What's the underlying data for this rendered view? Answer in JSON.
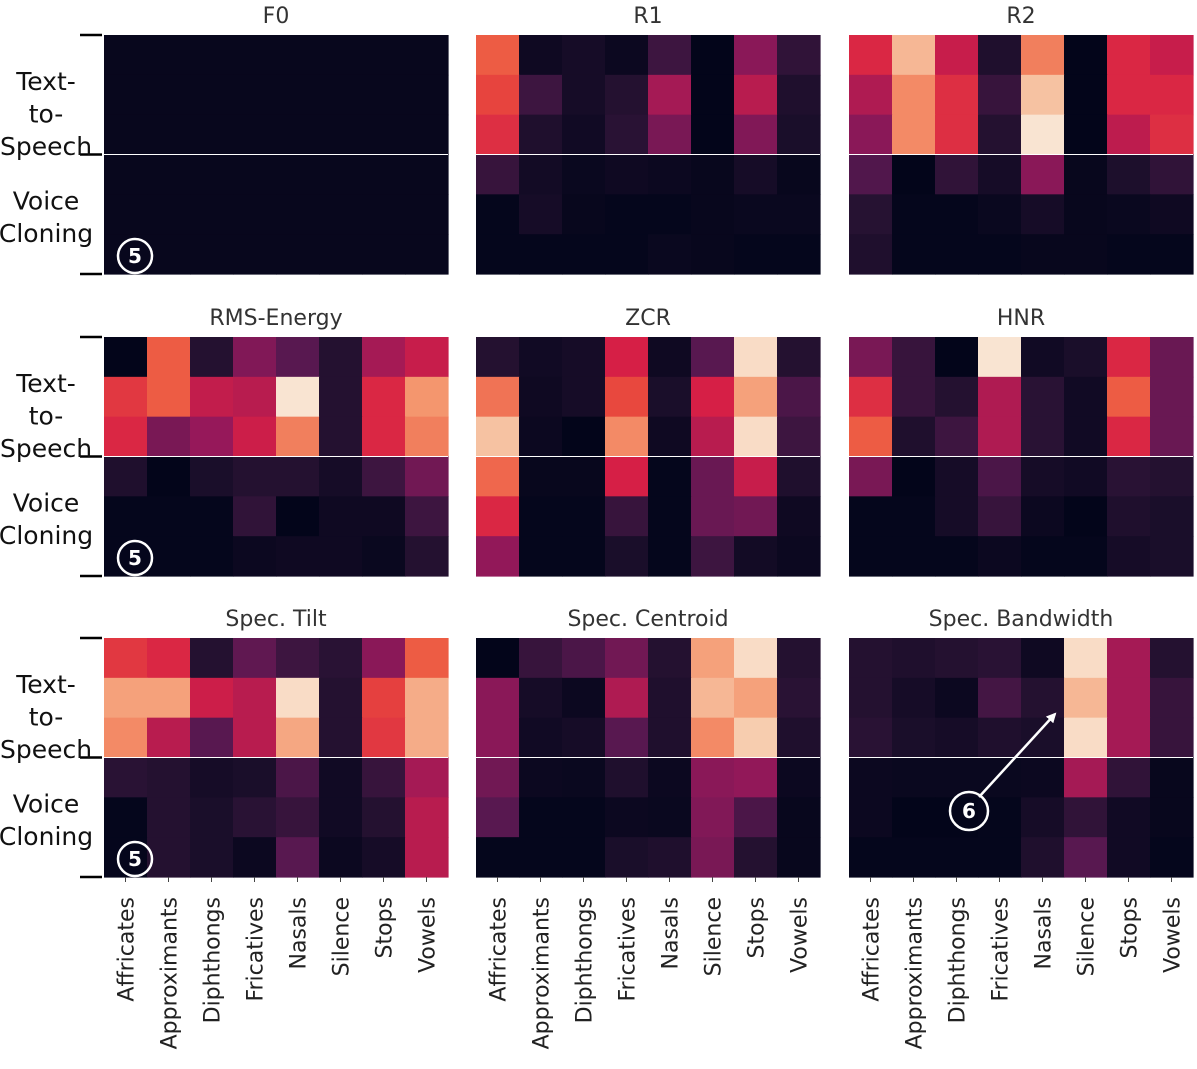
{
  "chart_data": {
    "type": "heatmap",
    "colormap": "rocket",
    "value_range": [
      0,
      1
    ],
    "x_categories": [
      "Affricates",
      "Approximants",
      "Diphthongs",
      "Fricatives",
      "Nasals",
      "Silence",
      "Stops",
      "Vowels"
    ],
    "row_groups": [
      "Text-to-Speech",
      "Voice Cloning"
    ],
    "rows_per_group": 3,
    "panels": [
      {
        "title": "F0",
        "values": [
          [
            0.02,
            0.02,
            0.02,
            0.02,
            0.02,
            0.02,
            0.02,
            0.02
          ],
          [
            0.02,
            0.02,
            0.02,
            0.02,
            0.02,
            0.02,
            0.02,
            0.02
          ],
          [
            0.02,
            0.02,
            0.02,
            0.02,
            0.02,
            0.02,
            0.02,
            0.02
          ],
          [
            0.02,
            0.02,
            0.02,
            0.02,
            0.02,
            0.02,
            0.02,
            0.02
          ],
          [
            0.02,
            0.02,
            0.02,
            0.02,
            0.02,
            0.02,
            0.02,
            0.02
          ],
          [
            0.02,
            0.02,
            0.02,
            0.02,
            0.02,
            0.02,
            0.02,
            0.02
          ]
        ]
      },
      {
        "title": "R1",
        "values": [
          [
            0.72,
            0.05,
            0.08,
            0.04,
            0.22,
            0.0,
            0.42,
            0.18
          ],
          [
            0.67,
            0.22,
            0.08,
            0.14,
            0.48,
            0.0,
            0.52,
            0.12
          ],
          [
            0.62,
            0.12,
            0.06,
            0.16,
            0.38,
            0.0,
            0.4,
            0.1
          ],
          [
            0.2,
            0.07,
            0.03,
            0.05,
            0.04,
            0.02,
            0.08,
            0.02
          ],
          [
            0.01,
            0.08,
            0.02,
            0.01,
            0.01,
            0.02,
            0.03,
            0.03
          ],
          [
            0.01,
            0.01,
            0.01,
            0.01,
            0.03,
            0.02,
            0.01,
            0.01
          ]
        ]
      },
      {
        "title": "R2",
        "values": [
          [
            0.6,
            0.88,
            0.55,
            0.12,
            0.78,
            0.0,
            0.6,
            0.55
          ],
          [
            0.5,
            0.8,
            0.62,
            0.2,
            0.9,
            0.0,
            0.6,
            0.6
          ],
          [
            0.42,
            0.8,
            0.62,
            0.14,
            0.98,
            0.0,
            0.53,
            0.62
          ],
          [
            0.28,
            0.0,
            0.18,
            0.08,
            0.42,
            0.02,
            0.11,
            0.18
          ],
          [
            0.15,
            0.01,
            0.01,
            0.03,
            0.08,
            0.02,
            0.03,
            0.05
          ],
          [
            0.12,
            0.01,
            0.01,
            0.01,
            0.02,
            0.02,
            0.01,
            0.01
          ]
        ]
      },
      {
        "title": "RMS-Energy",
        "values": [
          [
            0.0,
            0.72,
            0.14,
            0.4,
            0.3,
            0.14,
            0.48,
            0.55
          ],
          [
            0.64,
            0.72,
            0.54,
            0.52,
            0.98,
            0.14,
            0.6,
            0.82
          ],
          [
            0.6,
            0.38,
            0.45,
            0.56,
            0.78,
            0.14,
            0.6,
            0.78
          ],
          [
            0.12,
            0.0,
            0.1,
            0.14,
            0.14,
            0.08,
            0.22,
            0.36
          ],
          [
            0.01,
            0.01,
            0.01,
            0.18,
            0.0,
            0.05,
            0.05,
            0.22
          ],
          [
            0.01,
            0.01,
            0.01,
            0.04,
            0.05,
            0.05,
            0.03,
            0.14
          ]
        ]
      },
      {
        "title": "ZCR",
        "values": [
          [
            0.14,
            0.06,
            0.08,
            0.58,
            0.05,
            0.3,
            0.96,
            0.14
          ],
          [
            0.76,
            0.05,
            0.08,
            0.68,
            0.1,
            0.58,
            0.84,
            0.26
          ],
          [
            0.9,
            0.04,
            0.0,
            0.8,
            0.05,
            0.52,
            0.96,
            0.22
          ],
          [
            0.74,
            0.02,
            0.02,
            0.58,
            0.01,
            0.34,
            0.55,
            0.12
          ],
          [
            0.6,
            0.01,
            0.01,
            0.2,
            0.01,
            0.34,
            0.36,
            0.05
          ],
          [
            0.44,
            0.01,
            0.01,
            0.1,
            0.01,
            0.22,
            0.07,
            0.04
          ]
        ]
      },
      {
        "title": "HNR",
        "values": [
          [
            0.38,
            0.2,
            0.0,
            0.98,
            0.06,
            0.1,
            0.6,
            0.34
          ],
          [
            0.62,
            0.2,
            0.14,
            0.5,
            0.16,
            0.06,
            0.72,
            0.34
          ],
          [
            0.72,
            0.12,
            0.22,
            0.5,
            0.16,
            0.06,
            0.6,
            0.34
          ],
          [
            0.38,
            0.0,
            0.08,
            0.26,
            0.08,
            0.06,
            0.16,
            0.14
          ],
          [
            0.01,
            0.01,
            0.08,
            0.2,
            0.04,
            0.0,
            0.12,
            0.1
          ],
          [
            0.01,
            0.01,
            0.01,
            0.04,
            0.01,
            0.01,
            0.08,
            0.1
          ]
        ]
      },
      {
        "title": "Spec. Tilt",
        "values": [
          [
            0.64,
            0.6,
            0.14,
            0.32,
            0.22,
            0.16,
            0.42,
            0.72
          ],
          [
            0.84,
            0.84,
            0.56,
            0.52,
            0.96,
            0.14,
            0.66,
            0.86
          ],
          [
            0.8,
            0.52,
            0.3,
            0.52,
            0.85,
            0.14,
            0.64,
            0.86
          ],
          [
            0.16,
            0.14,
            0.08,
            0.1,
            0.26,
            0.06,
            0.2,
            0.48
          ],
          [
            0.01,
            0.14,
            0.1,
            0.16,
            0.2,
            0.06,
            0.14,
            0.52
          ],
          [
            0.01,
            0.14,
            0.1,
            0.04,
            0.3,
            0.04,
            0.08,
            0.52
          ]
        ]
      },
      {
        "title": "Spec. Centroid",
        "values": [
          [
            0.0,
            0.2,
            0.26,
            0.36,
            0.14,
            0.84,
            0.96,
            0.14
          ],
          [
            0.42,
            0.08,
            0.04,
            0.5,
            0.12,
            0.88,
            0.84,
            0.16
          ],
          [
            0.42,
            0.06,
            0.08,
            0.3,
            0.12,
            0.8,
            0.92,
            0.12
          ],
          [
            0.36,
            0.04,
            0.03,
            0.12,
            0.04,
            0.42,
            0.44,
            0.04
          ],
          [
            0.3,
            0.01,
            0.01,
            0.04,
            0.03,
            0.4,
            0.26,
            0.02
          ],
          [
            0.01,
            0.01,
            0.01,
            0.1,
            0.12,
            0.38,
            0.14,
            0.02
          ]
        ]
      },
      {
        "title": "Spec. Bandwidth",
        "values": [
          [
            0.14,
            0.12,
            0.14,
            0.16,
            0.05,
            0.96,
            0.48,
            0.14
          ],
          [
            0.14,
            0.08,
            0.04,
            0.24,
            0.14,
            0.88,
            0.48,
            0.2
          ],
          [
            0.16,
            0.1,
            0.08,
            0.12,
            0.1,
            0.96,
            0.48,
            0.2
          ],
          [
            0.04,
            0.03,
            0.03,
            0.03,
            0.04,
            0.48,
            0.18,
            0.02
          ],
          [
            0.04,
            0.0,
            0.0,
            0.01,
            0.08,
            0.18,
            0.06,
            0.02
          ],
          [
            0.01,
            0.01,
            0.01,
            0.01,
            0.12,
            0.3,
            0.06,
            0.01
          ]
        ]
      }
    ],
    "annotations": [
      {
        "label": "5",
        "panel": "F0",
        "position": "bottom-left"
      },
      {
        "label": "5",
        "panel": "RMS-Energy",
        "position": "bottom-left"
      },
      {
        "label": "5",
        "panel": "Spec. Tilt",
        "position": "bottom-left"
      },
      {
        "label": "6",
        "panel": "Spec. Bandwidth",
        "position": "bottom-center",
        "arrow_to": "Silence, Text-to-Speech"
      }
    ]
  }
}
